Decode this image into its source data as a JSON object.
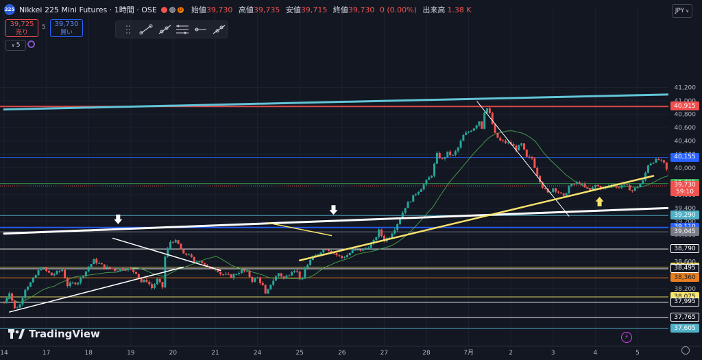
{
  "header": {
    "logo_text": "225",
    "symbol": "Nikkei 225 Mini Futures · 1時間 · OSE",
    "status_dot_left_color": "#ef5350",
    "market_badge": "D",
    "ohlc": {
      "open_label": "始値",
      "open": "39,730",
      "high_label": "高値",
      "high": "39,735",
      "low_label": "安値",
      "low": "39,715",
      "close_label": "終値",
      "close": "39,730",
      "change": "0 (0.00%)",
      "volume_label": "出来高",
      "volume": "1.38 K"
    },
    "sell": {
      "price": "39,725",
      "label": "売り"
    },
    "spread": "5",
    "buy": {
      "price": "39,730",
      "label": "買い"
    },
    "indicator_count": "5",
    "currency": "JPY"
  },
  "toolbar": {
    "tools": [
      "drag-handle-icon",
      "trend-line-icon",
      "ray-line-icon",
      "parallel-channel-icon",
      "horizontal-ray-icon",
      "extended-line-icon"
    ]
  },
  "brand": {
    "name": "TradingView"
  },
  "xaxis": {
    "labels": [
      "14",
      "17",
      "18",
      "19",
      "20",
      "21",
      "24",
      "25",
      "26",
      "27",
      "28",
      "7月",
      "2",
      "3",
      "4",
      "5"
    ]
  },
  "chart_data": {
    "type": "candlestick",
    "ylim": [
      37500,
      41300
    ],
    "y_ticks": [
      41200,
      41000,
      40800,
      40600,
      40400,
      40200,
      40000,
      39800,
      39600,
      39400,
      39200,
      39000,
      38800,
      38600,
      38400,
      38200,
      38000,
      37800,
      37600
    ],
    "price_path": [
      [
        0,
        37990
      ],
      [
        0.5,
        38150
      ],
      [
        1,
        37900
      ],
      [
        1.5,
        37960
      ],
      [
        2,
        38200
      ],
      [
        2.6,
        38300
      ],
      [
        3.5,
        38520
      ],
      [
        4.5,
        38400
      ],
      [
        5.5,
        38480
      ],
      [
        6,
        38250
      ],
      [
        7,
        38300
      ],
      [
        8.5,
        38620
      ],
      [
        9.5,
        38520
      ],
      [
        10.5,
        38480
      ],
      [
        11.5,
        38500
      ],
      [
        12.5,
        38440
      ],
      [
        13,
        38300
      ],
      [
        13.5,
        38320
      ],
      [
        14,
        38210
      ],
      [
        14.5,
        38330
      ],
      [
        15,
        38220
      ],
      [
        15.2,
        38650
      ],
      [
        15.8,
        38920
      ],
      [
        16.4,
        38890
      ],
      [
        17,
        38700
      ],
      [
        17.5,
        38720
      ],
      [
        18,
        38580
      ],
      [
        18.5,
        38630
      ],
      [
        19,
        38560
      ],
      [
        19.5,
        38480
      ],
      [
        20,
        38520
      ],
      [
        20.5,
        38420
      ],
      [
        21.5,
        38380
      ],
      [
        22.5,
        38470
      ],
      [
        23,
        38440
      ],
      [
        23.5,
        38320
      ],
      [
        24,
        38360
      ],
      [
        24.5,
        38240
      ],
      [
        24.8,
        38080
      ],
      [
        25.2,
        38260
      ],
      [
        26,
        38430
      ],
      [
        26.5,
        38350
      ],
      [
        27,
        38420
      ],
      [
        27.4,
        38500
      ],
      [
        27.8,
        38440
      ],
      [
        28.2,
        38290
      ],
      [
        28.5,
        38500
      ],
      [
        29,
        38620
      ],
      [
        30,
        38760
      ],
      [
        30.5,
        38800
      ],
      [
        31,
        38760
      ],
      [
        31.5,
        38700
      ],
      [
        32,
        38660
      ],
      [
        32.5,
        38700
      ],
      [
        33,
        38760
      ],
      [
        34,
        38780
      ],
      [
        34.5,
        38830
      ],
      [
        35,
        38900
      ],
      [
        35.5,
        39060
      ],
      [
        36,
        38920
      ],
      [
        36.5,
        38980
      ],
      [
        37,
        39100
      ],
      [
        37.5,
        39250
      ],
      [
        38,
        39420
      ],
      [
        38.5,
        39520
      ],
      [
        39,
        39620
      ],
      [
        39.5,
        39700
      ],
      [
        40,
        39800
      ],
      [
        40.5,
        39900
      ],
      [
        41,
        40200
      ],
      [
        41.5,
        40120
      ],
      [
        42,
        40220
      ],
      [
        42.5,
        40180
      ],
      [
        43,
        40300
      ],
      [
        43.5,
        40480
      ],
      [
        44,
        40540
      ],
      [
        44.5,
        40600
      ],
      [
        45,
        40700
      ],
      [
        45.2,
        40550
      ],
      [
        45.6,
        40940
      ],
      [
        46,
        40800
      ],
      [
        46.5,
        40500
      ],
      [
        47,
        40400
      ],
      [
        47.5,
        40380
      ],
      [
        48,
        40360
      ],
      [
        48.5,
        40280
      ],
      [
        49,
        40350
      ],
      [
        49.5,
        40150
      ],
      [
        50,
        40140
      ],
      [
        50.5,
        39900
      ],
      [
        51,
        39720
      ],
      [
        51.5,
        39620
      ],
      [
        52,
        39700
      ],
      [
        52.5,
        39640
      ],
      [
        53,
        39560
      ],
      [
        53.5,
        39720
      ],
      [
        54,
        39760
      ],
      [
        54.5,
        39780
      ],
      [
        55,
        39700
      ],
      [
        55.5,
        39660
      ],
      [
        56,
        39760
      ],
      [
        56.5,
        39680
      ],
      [
        57,
        39720
      ],
      [
        57.5,
        39760
      ],
      [
        58,
        39700
      ],
      [
        58.5,
        39740
      ],
      [
        59,
        39720
      ],
      [
        59.5,
        39660
      ],
      [
        60,
        39720
      ],
      [
        60.5,
        39800
      ],
      [
        61,
        40050
      ],
      [
        61.5,
        40100
      ],
      [
        62,
        40120
      ],
      [
        62.5,
        40060
      ],
      [
        63,
        39880
      ],
      [
        63.5,
        39740
      ],
      [
        64,
        39800
      ],
      [
        64.5,
        39720
      ],
      [
        65,
        39660
      ],
      [
        65.5,
        39730
      ]
    ],
    "x_sessions": {
      "14": 0,
      "17": 4,
      "18": 8,
      "19": 12,
      "20": 16,
      "21": 20,
      "24": 24,
      "25": 28,
      "26": 32,
      "27": 36,
      "28": 40,
      "7月": 44,
      "2": 48,
      "3": 52,
      "4": 56,
      "5": 60
    },
    "horizontal_levels": [
      {
        "price": 40915,
        "label": "40,915",
        "color": "#ef4f4f",
        "width": 2
      },
      {
        "price": 40155,
        "label": "40,155",
        "color": "#2962ff",
        "width": 1
      },
      {
        "price": 39765,
        "label": "39,765",
        "color": "#3fad52",
        "width": 1
      },
      {
        "price": 39290,
        "label": "39,290",
        "color": "#4fb0c6",
        "width": 1
      },
      {
        "price": 39110,
        "label": "39,110",
        "color": "#2962ff",
        "width": 2
      },
      {
        "price": 39045,
        "label": "39,045",
        "color": "#787b86",
        "width": 1
      },
      {
        "price": 38790,
        "label": "38,790",
        "color": "#ffffff",
        "width": 1
      },
      {
        "price": 38520,
        "label": "38,520",
        "color": "#f7e26b",
        "width": 1
      },
      {
        "price": 38495,
        "label": "38,495",
        "color": "#ffffff",
        "width": 1
      },
      {
        "price": 38360,
        "label": "38,360",
        "color": "#e67e22",
        "width": 1
      },
      {
        "price": 38075,
        "label": "38,075",
        "color": "#f7e26b",
        "width": 1
      },
      {
        "price": 37995,
        "label": "37,995",
        "color": "#ffffff",
        "width": 1
      },
      {
        "price": 37765,
        "label": "37,765",
        "color": "#ffffff",
        "width": 1
      },
      {
        "price": 37605,
        "label": "37,605",
        "color": "#4fb0c6",
        "width": 1
      }
    ],
    "current_price": {
      "price": "39,730",
      "countdown": "59:10",
      "value": 39730
    },
    "trend_lines": [
      {
        "from": [
          0,
          40870
        ],
        "to": [
          66,
          41105
        ],
        "color": "#62c5d8",
        "width": 3
      },
      {
        "from": [
          0,
          39020
        ],
        "to": [
          66,
          39420
        ],
        "color": "#ffffff",
        "width": 3
      },
      {
        "from": [
          0.5,
          37850
        ],
        "to": [
          17,
          38520
        ],
        "color": "#ffffff",
        "width": 1.5
      },
      {
        "from": [
          10.3,
          38950
        ],
        "to": [
          20.5,
          38470
        ],
        "color": "#ffffff",
        "width": 1.5
      },
      {
        "from": [
          44.8,
          40990
        ],
        "to": [
          53.5,
          39280
        ],
        "color": "#ffffff",
        "width": 1
      },
      {
        "from": [
          28,
          38620
        ],
        "to": [
          61.5,
          39880
        ],
        "color": "#f7e26b",
        "width": 2.5
      },
      {
        "from": [
          25,
          39180
        ],
        "to": [
          31,
          38990
        ],
        "color": "#f7e26b",
        "width": 1.5
      }
    ],
    "markers": [
      {
        "x": 10.8,
        "price": 39160,
        "color": "#ffffff",
        "dir": "down"
      },
      {
        "x": 31.2,
        "price": 39300,
        "color": "#ffffff",
        "dir": "down"
      },
      {
        "x": 56.4,
        "price": 39570,
        "color": "#f7e26b",
        "dir": "up"
      }
    ]
  }
}
